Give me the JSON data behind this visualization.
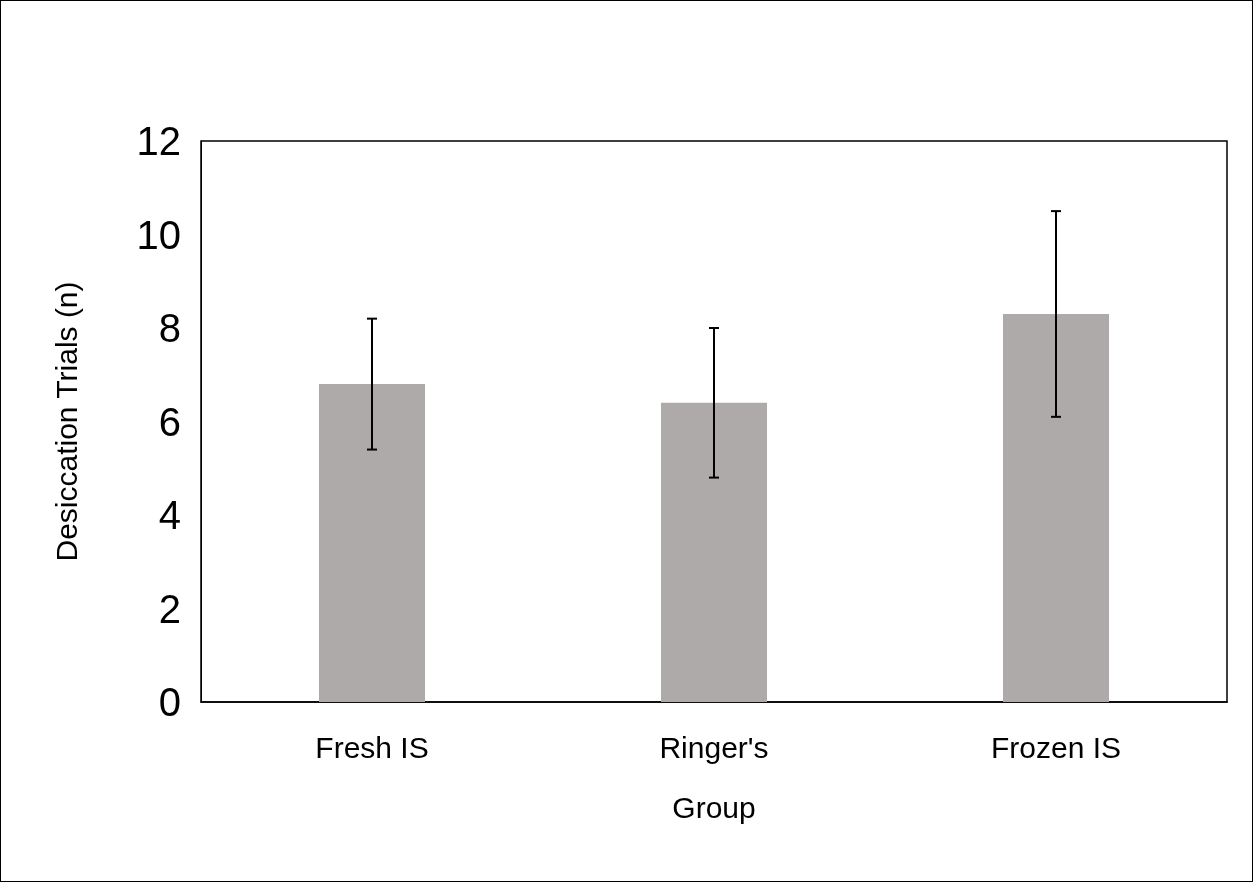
{
  "chart_data": {
    "type": "bar",
    "xlabel": "Group",
    "ylabel": "Desiccation Trials (n)",
    "categories": [
      "Fresh IS",
      "Ringer's",
      "Frozen IS"
    ],
    "values": [
      6.8,
      6.4,
      8.3
    ],
    "errors": [
      1.4,
      1.6,
      2.2
    ],
    "color": "#aeaaaa",
    "ylim": [
      0,
      12
    ],
    "yticks": [
      0,
      2,
      4,
      6,
      8,
      10,
      12
    ]
  }
}
